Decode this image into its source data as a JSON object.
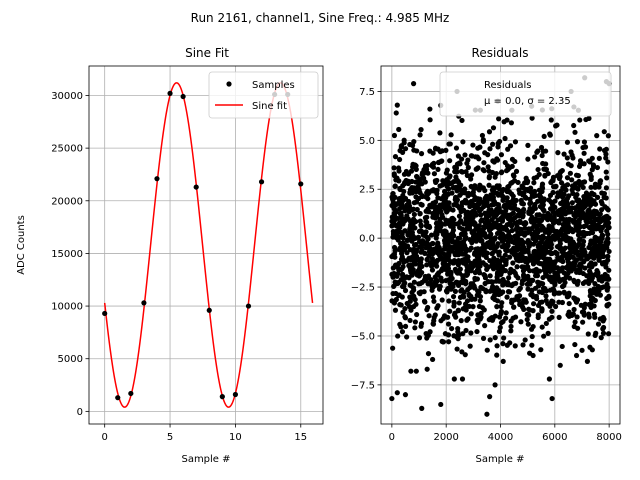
{
  "figure": {
    "suptitle": "Run 2161, channel1, Sine Freq.: 4.985 MHz"
  },
  "chart_data": [
    {
      "type": "line",
      "title": "Sine Fit",
      "xlabel": "Sample #",
      "ylabel": "ADC Counts",
      "xlim": [
        -1.2,
        16.7
      ],
      "ylim": [
        -1200,
        32800
      ],
      "xticks": [
        0,
        5,
        10,
        15
      ],
      "yticks": [
        0,
        5000,
        10000,
        15000,
        20000,
        25000,
        30000
      ],
      "grid": true,
      "legend_position": "top-right",
      "fit": {
        "amplitude": 15400,
        "offset": 15800,
        "period": 7.95,
        "phase_sample": 5.5,
        "x_range": [
          0,
          15.9
        ]
      },
      "series": [
        {
          "name": "Samples",
          "style": "markers",
          "color": "#000000",
          "x": [
            0,
            1,
            2,
            3,
            4,
            5,
            6,
            7,
            8,
            9,
            10,
            11,
            12,
            13,
            14,
            15
          ],
          "y": [
            9300,
            1300,
            1700,
            10300,
            22100,
            30200,
            29900,
            21300,
            9600,
            1400,
            1600,
            10000,
            21800,
            30100,
            30100,
            21600
          ]
        },
        {
          "name": "Sine fit",
          "style": "line",
          "color": "#ff0000"
        }
      ]
    },
    {
      "type": "scatter",
      "title": "Residuals",
      "xlabel": "Sample #",
      "ylabel": "",
      "xlim": [
        -400,
        8400
      ],
      "ylim": [
        -9.5,
        8.8
      ],
      "xticks": [
        0,
        2000,
        4000,
        6000,
        8000
      ],
      "yticks": [
        -7.5,
        -5.0,
        -2.5,
        0.0,
        2.5,
        5.0,
        7.5
      ],
      "grid": true,
      "legend_position": "top-right",
      "sample_count": 8000,
      "sigma": 2.35,
      "series": [
        {
          "name": "Residuals",
          "style": "markers",
          "color": "#000000",
          "stats_label": "μ = 0.0, σ = 2.35",
          "outliers": [
            [
              0,
              -8.2
            ],
            [
              200,
              -7.9
            ],
            [
              500,
              -8.0
            ],
            [
              700,
              -6.8
            ],
            [
              900,
              -6.8
            ],
            [
              1100,
              -8.7
            ],
            [
              1300,
              -6.7
            ],
            [
              1800,
              -8.5
            ],
            [
              2300,
              -7.2
            ],
            [
              2600,
              -7.2
            ],
            [
              3500,
              -9.0
            ],
            [
              3600,
              -8.1
            ],
            [
              3800,
              -7.5
            ],
            [
              5900,
              -8.2
            ],
            [
              5800,
              -7.2
            ],
            [
              6200,
              -6.5
            ],
            [
              7200,
              -6.3
            ],
            [
              800,
              7.9
            ],
            [
              2400,
              7.5
            ],
            [
              7100,
              8.2
            ],
            [
              7900,
              8.0
            ],
            [
              8000,
              7.9
            ],
            [
              6600,
              7.5
            ],
            [
              3900,
              7.0
            ],
            [
              1400,
              6.6
            ],
            [
              200,
              6.8
            ],
            [
              1500,
              -6.2
            ],
            [
              4100,
              -6.3
            ],
            [
              5200,
              -6.0
            ],
            [
              6800,
              -6.0
            ]
          ]
        }
      ]
    }
  ]
}
